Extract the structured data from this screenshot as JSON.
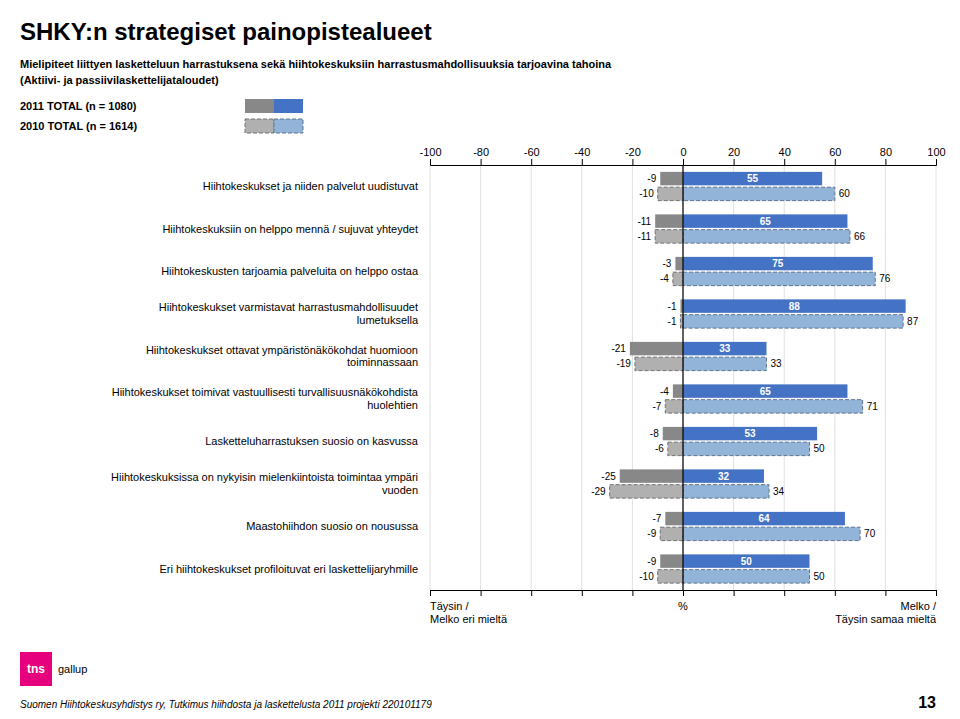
{
  "chart_data": {
    "type": "bar",
    "orientation": "horizontal",
    "title": "SHKY:n strategiset painopistealueet",
    "subtitle": [
      "Mielipiteet liittyen lasketteluun harrastuksena sekä hiihtokeskuksiin harrastusmahdollisuuksia tarjoavina tahoina",
      "(Aktiivi- ja passiivilaskettelijataloudet)"
    ],
    "xlabel": "%",
    "xlabel_left": "Täysin /\nMelko eri mieltä",
    "xlabel_right": "Melko /\nTäysin samaa mieltä",
    "footer": "Suomen Hiihtokeskusyhdistys ry, Tutkimus hiihdosta ja laskettelusta 2011 projekti 220101179",
    "page_number": "13",
    "logo_text": [
      "tns",
      "gallup"
    ],
    "categories": [
      "Hiihtokeskukset ja niiden palvelut uudistuvat",
      "Hiihtokeskuksiin on helppo mennä / sujuvat yhteydet",
      "Hiihtokeskusten tarjoamia palveluita on helppo ostaa",
      "Hiihtokeskukset varmistavat harrastusmahdollisuudet\nlumetuksella",
      "Hiihtokeskukset ottavat ympäristönäkökohdat huomioon\ntoiminnassaan",
      "Hiihtokeskukset toimivat vastuullisesti turvallisuusnäkökohdista\nhuolehtien",
      "Lasketteluharrastuksen suosio on kasvussa",
      "Hiihtokeskuksissa on nykyisin mielenkiintoista toimintaa ympäri\nvuoden",
      "Maastohiihdon suosio on nousussa",
      "Eri hiihtokeskukset profiloituvat eri laskettelijaryhmille"
    ],
    "series": [
      {
        "name": "2011 TOTAL (n = 1080)",
        "color": "#888888",
        "line_style": "solid",
        "values": [
          -9,
          -11,
          -3,
          -1,
          -21,
          -4,
          -8,
          -25,
          -7,
          -9
        ]
      },
      {
        "name": "2011 TOTAL (n = 1080)",
        "color": "#4472c4",
        "line_style": "solid",
        "values": [
          55,
          65,
          75,
          88,
          33,
          65,
          53,
          32,
          64,
          50
        ]
      },
      {
        "name": "2010 TOTAL (n = 1614)",
        "color": "#b0b0b0",
        "line_style": "dashed",
        "values": [
          -10,
          -11,
          -4,
          -1,
          -19,
          -7,
          -6,
          -29,
          -9,
          -10
        ]
      },
      {
        "name": "2010 TOTAL (n = 1614)",
        "color": "#92b4d8",
        "line_style": "dashed",
        "values": [
          60,
          66,
          76,
          87,
          33,
          71,
          50,
          34,
          70,
          50
        ]
      }
    ],
    "xlim": [
      -100,
      100
    ],
    "xticks": [
      -100,
      -80,
      -60,
      -40,
      -20,
      0,
      20,
      40,
      60,
      80,
      100
    ],
    "grid": true,
    "data_labels": true,
    "legend": "top"
  }
}
